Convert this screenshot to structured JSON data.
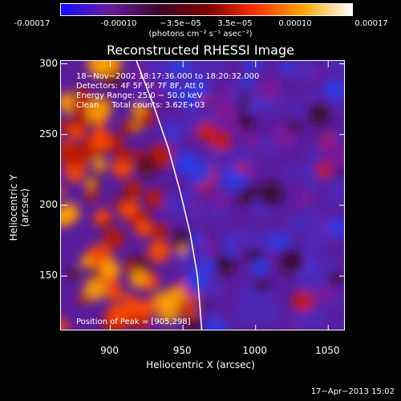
{
  "colorbar": {
    "ticks": [
      "-0.00017",
      "-0.00010",
      "−3.5e−05",
      "3.5e−05",
      "0.00010",
      "0.00017"
    ],
    "unit": "(photons cm⁻² s⁻¹ asec⁻²)",
    "colors": [
      "#1010ff",
      "#6a1aa0",
      "#3a0a2a",
      "#7a0000",
      "#ff3000",
      "#ffa500",
      "#ffffff"
    ]
  },
  "title": "Reconstructed RHESSI Image",
  "info": {
    "line1": "18−Nov−2002 18:17:36.000 to 18:20:32.000",
    "line2": "Detectors: 4F 5F 6F 7F 8F, Att 0",
    "line3": "Energy Range: 25.0 − 50.0 keV",
    "line4": "Clean     Total counts: 3.62E+03",
    "peak": "Position of Peak = [905,298]"
  },
  "timestamp": "17−Apr−2013 15:02",
  "chart_data": {
    "type": "heatmap",
    "title": "Reconstructed RHESSI Image",
    "xlabel": "Heliocentric X (arcsec)",
    "ylabel": "Heliocentric Y (arcsec)",
    "xlim": [
      866,
      1062
    ],
    "ylim": [
      111,
      302
    ],
    "xticks": [
      900,
      950,
      1000,
      1050
    ],
    "yticks": [
      150,
      200,
      250,
      300
    ],
    "value_range": [
      -0.00017,
      0.00017
    ],
    "peak_position": [
      905,
      298
    ],
    "limb_curve": {
      "x": [
        918,
        930,
        940,
        948,
        955,
        960,
        963
      ],
      "y": [
        302,
        270,
        240,
        210,
        180,
        150,
        111
      ]
    }
  }
}
